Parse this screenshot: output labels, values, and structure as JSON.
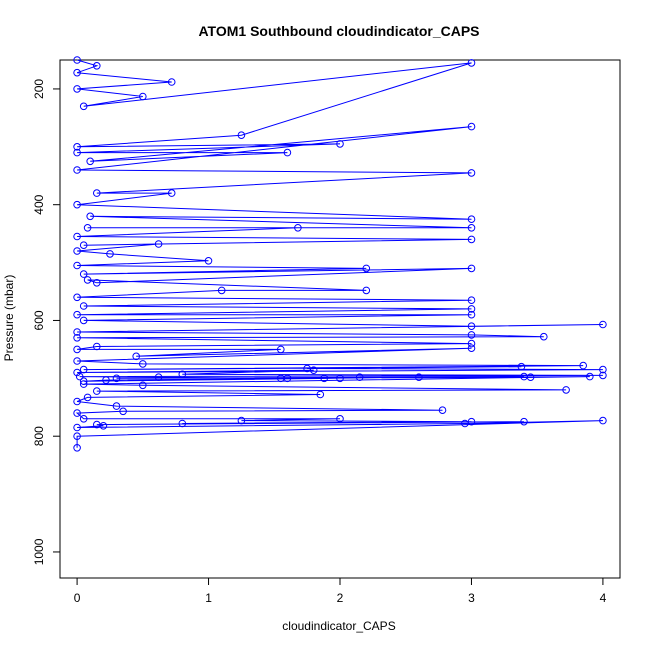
{
  "chart_data": {
    "type": "line",
    "title": "ATOM1 Southbound cloudindicator_CAPS",
    "xlabel": "cloudindicator_CAPS",
    "ylabel": "Pressure (mbar)",
    "xlim": [
      -0.13,
      4.13
    ],
    "ylim": [
      1045,
      150
    ],
    "y_reversed": true,
    "x_ticks": [
      0,
      1,
      2,
      3,
      4
    ],
    "y_ticks": [
      200,
      400,
      600,
      800,
      1000
    ],
    "series_color": "#0000ff",
    "marker": "open-circle",
    "series": [
      {
        "values": [
          [
            0,
            150
          ],
          [
            0.15,
            160
          ],
          [
            0,
            172
          ],
          [
            0.72,
            188
          ],
          [
            0,
            200
          ],
          [
            0.5,
            213
          ],
          [
            0.05,
            230
          ],
          [
            3,
            155
          ],
          [
            1.25,
            280
          ],
          [
            0,
            300
          ],
          [
            2,
            295
          ],
          [
            0,
            310
          ],
          [
            1.6,
            310
          ],
          [
            0.1,
            325
          ],
          [
            3,
            265
          ],
          [
            0,
            340
          ],
          [
            3,
            345
          ],
          [
            0.15,
            380
          ],
          [
            0.72,
            380
          ],
          [
            0,
            400
          ],
          [
            3,
            425
          ],
          [
            0.1,
            420
          ],
          [
            3,
            440
          ],
          [
            0.08,
            440
          ],
          [
            1.68,
            440
          ],
          [
            0,
            455
          ],
          [
            3,
            460
          ],
          [
            0.05,
            470
          ],
          [
            0.62,
            468
          ],
          [
            0,
            480
          ],
          [
            0.25,
            485
          ],
          [
            1,
            497
          ],
          [
            0,
            505
          ],
          [
            2.2,
            510
          ],
          [
            0.05,
            520
          ],
          [
            3,
            510
          ],
          [
            0.15,
            535
          ],
          [
            0.08,
            530
          ],
          [
            2.2,
            548
          ],
          [
            1.1,
            548
          ],
          [
            0,
            560
          ],
          [
            3,
            565
          ],
          [
            0.05,
            575
          ],
          [
            3,
            580
          ],
          [
            0,
            590
          ],
          [
            3,
            590
          ],
          [
            0.05,
            600
          ],
          [
            3,
            610
          ],
          [
            4,
            607
          ],
          [
            0,
            620
          ],
          [
            3,
            625
          ],
          [
            3.55,
            628
          ],
          [
            0,
            630
          ],
          [
            3,
            640
          ],
          [
            0.15,
            645
          ],
          [
            0,
            650
          ],
          [
            1.55,
            650
          ],
          [
            0.45,
            662
          ],
          [
            3,
            648
          ],
          [
            0,
            670
          ],
          [
            0.5,
            675
          ],
          [
            3.85,
            678
          ],
          [
            0.05,
            685
          ],
          [
            3.38,
            680
          ],
          [
            1.75,
            683
          ],
          [
            4,
            685
          ],
          [
            0,
            690
          ],
          [
            1.8,
            686
          ],
          [
            0.8,
            693
          ],
          [
            4,
            695
          ],
          [
            0.02,
            697
          ],
          [
            0.62,
            698
          ],
          [
            1.55,
            700
          ],
          [
            2.6,
            698
          ],
          [
            2.15,
            698
          ],
          [
            3.4,
            697
          ],
          [
            0.3,
            700
          ],
          [
            3.45,
            698
          ],
          [
            1.6,
            700
          ],
          [
            2.0,
            700
          ],
          [
            0.05,
            705
          ],
          [
            0.22,
            703
          ],
          [
            1.88,
            700
          ],
          [
            3.9,
            697
          ],
          [
            0.05,
            710
          ],
          [
            0.5,
            712
          ],
          [
            3.72,
            720
          ],
          [
            0.15,
            722
          ],
          [
            1.85,
            728
          ],
          [
            0.08,
            733
          ],
          [
            0,
            740
          ],
          [
            0.3,
            748
          ],
          [
            2.78,
            755
          ],
          [
            0.35,
            757
          ],
          [
            0,
            760
          ],
          [
            0.05,
            770
          ],
          [
            2.0,
            770
          ],
          [
            1.25,
            773
          ],
          [
            3,
            775
          ],
          [
            0.8,
            778
          ],
          [
            3.4,
            775
          ],
          [
            0.15,
            780
          ],
          [
            0.2,
            782
          ],
          [
            0,
            785
          ],
          [
            2.95,
            778
          ],
          [
            4,
            773
          ],
          [
            0,
            800
          ],
          [
            0,
            820
          ]
        ]
      }
    ]
  }
}
